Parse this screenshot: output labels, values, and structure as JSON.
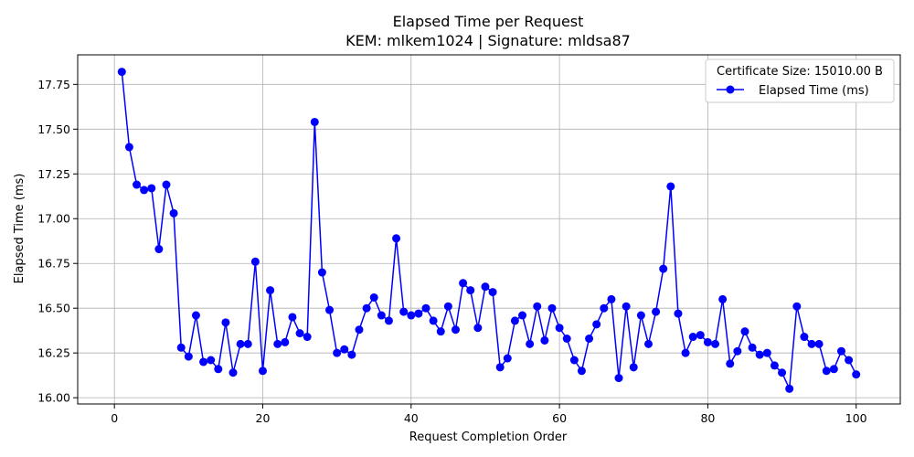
{
  "chart_data": {
    "type": "line",
    "title": "Elapsed Time per Request",
    "subtitle": "KEM: mlkem1024 | Signature: mldsa87",
    "xlabel": "Request Completion Order",
    "ylabel": "Elapsed Time (ms)",
    "xlim": [
      -4.95,
      105.95
    ],
    "ylim": [
      15.965,
      17.915
    ],
    "xticks": [
      0,
      20,
      40,
      60,
      80,
      100
    ],
    "yticks": [
      16.0,
      16.25,
      16.5,
      16.75,
      17.0,
      17.25,
      17.5,
      17.75
    ],
    "grid": true,
    "legend": {
      "title": "Certificate Size: 15010.00 B",
      "placement": "top-right"
    },
    "series": [
      {
        "name": "Elapsed Time (ms)",
        "color": "#0000ff",
        "marker": "circle",
        "x": [
          1,
          2,
          3,
          4,
          5,
          6,
          7,
          8,
          9,
          10,
          11,
          12,
          13,
          14,
          15,
          16,
          17,
          18,
          19,
          20,
          21,
          22,
          23,
          24,
          25,
          26,
          27,
          28,
          29,
          30,
          31,
          32,
          33,
          34,
          35,
          36,
          37,
          38,
          39,
          40,
          41,
          42,
          43,
          44,
          45,
          46,
          47,
          48,
          49,
          50,
          51,
          52,
          53,
          54,
          55,
          56,
          57,
          58,
          59,
          60,
          61,
          62,
          63,
          64,
          65,
          66,
          67,
          68,
          69,
          70,
          71,
          72,
          73,
          74,
          75,
          76,
          77,
          78,
          79,
          80,
          81,
          82,
          83,
          84,
          85,
          86,
          87,
          88,
          89,
          90,
          91,
          92,
          93,
          94,
          95,
          96,
          97,
          98,
          99,
          100
        ],
        "values": [
          17.82,
          17.4,
          17.19,
          17.16,
          17.17,
          16.83,
          17.19,
          17.03,
          16.28,
          16.23,
          16.46,
          16.2,
          16.21,
          16.16,
          16.42,
          16.14,
          16.3,
          16.3,
          16.76,
          16.15,
          16.6,
          16.3,
          16.31,
          16.45,
          16.36,
          16.34,
          17.54,
          16.7,
          16.49,
          16.25,
          16.27,
          16.24,
          16.38,
          16.5,
          16.56,
          16.46,
          16.43,
          16.89,
          16.48,
          16.46,
          16.47,
          16.5,
          16.43,
          16.37,
          16.51,
          16.38,
          16.64,
          16.6,
          16.39,
          16.62,
          16.59,
          16.17,
          16.22,
          16.43,
          16.46,
          16.3,
          16.51,
          16.32,
          16.5,
          16.39,
          16.33,
          16.21,
          16.15,
          16.33,
          16.41,
          16.5,
          16.55,
          16.11,
          16.51,
          16.17,
          16.46,
          16.3,
          16.48,
          16.72,
          17.18,
          16.47,
          16.25,
          16.34,
          16.35,
          16.31,
          16.3,
          16.55,
          16.19,
          16.26,
          16.37,
          16.28,
          16.24,
          16.25,
          16.18,
          16.14,
          16.05,
          16.51,
          16.34,
          16.3,
          16.3,
          16.15,
          16.16,
          16.26,
          16.21,
          16.13
        ]
      }
    ]
  }
}
